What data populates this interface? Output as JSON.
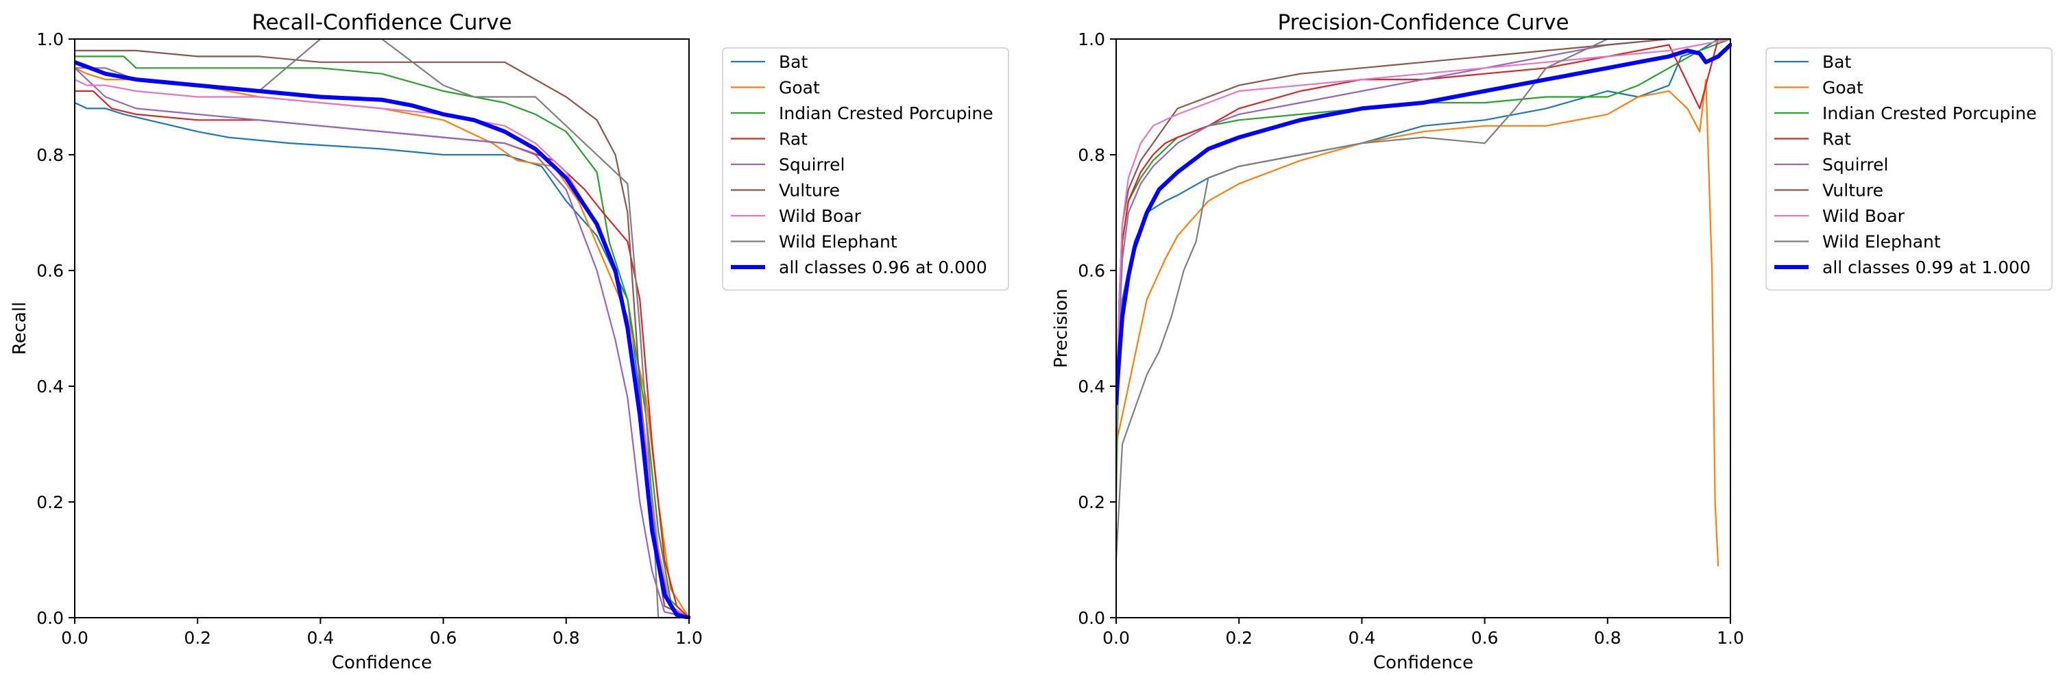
{
  "chart_data": [
    {
      "type": "line",
      "title": "Recall-Confidence Curve",
      "xlabel": "Confidence",
      "ylabel": "Recall",
      "xlim": [
        0,
        1
      ],
      "ylim": [
        0,
        1
      ],
      "xticks": [
        "0.0",
        "0.2",
        "0.4",
        "0.6",
        "0.8",
        "1.0"
      ],
      "yticks": [
        "0.0",
        "0.2",
        "0.4",
        "0.6",
        "0.8",
        "1.0"
      ],
      "legend_position": "outside-right",
      "series": [
        {
          "name": "Bat",
          "color": "#1f77b4",
          "x": [
            0,
            0.02,
            0.05,
            0.08,
            0.12,
            0.2,
            0.25,
            0.35,
            0.5,
            0.6,
            0.7,
            0.76,
            0.8,
            0.85,
            0.9,
            0.93,
            0.95,
            0.97,
            1.0
          ],
          "y": [
            0.89,
            0.88,
            0.88,
            0.87,
            0.86,
            0.84,
            0.83,
            0.82,
            0.81,
            0.8,
            0.8,
            0.78,
            0.72,
            0.66,
            0.55,
            0.3,
            0.1,
            0.02,
            0.0
          ]
        },
        {
          "name": "Goat",
          "color": "#ff7f0e",
          "x": [
            0,
            0.02,
            0.05,
            0.1,
            0.2,
            0.3,
            0.4,
            0.5,
            0.6,
            0.68,
            0.72,
            0.78,
            0.82,
            0.86,
            0.9,
            0.93,
            0.95,
            0.97,
            1.0
          ],
          "y": [
            0.95,
            0.94,
            0.93,
            0.93,
            0.92,
            0.9,
            0.89,
            0.88,
            0.86,
            0.82,
            0.79,
            0.78,
            0.72,
            0.62,
            0.52,
            0.38,
            0.2,
            0.05,
            0.0
          ]
        },
        {
          "name": "Indian Crested Porcupine",
          "color": "#2ca02c",
          "x": [
            0,
            0.03,
            0.08,
            0.1,
            0.2,
            0.3,
            0.4,
            0.5,
            0.6,
            0.7,
            0.75,
            0.8,
            0.85,
            0.87,
            0.9,
            0.93,
            0.95,
            0.97,
            1.0
          ],
          "y": [
            0.97,
            0.97,
            0.97,
            0.95,
            0.95,
            0.95,
            0.95,
            0.94,
            0.91,
            0.89,
            0.87,
            0.84,
            0.77,
            0.65,
            0.55,
            0.35,
            0.15,
            0.03,
            0.0
          ]
        },
        {
          "name": "Rat",
          "color": "#d62728",
          "x": [
            0,
            0.03,
            0.06,
            0.1,
            0.2,
            0.3,
            0.4,
            0.5,
            0.6,
            0.7,
            0.78,
            0.83,
            0.86,
            0.9,
            0.92,
            0.94,
            0.96,
            0.98,
            1.0
          ],
          "y": [
            0.91,
            0.91,
            0.88,
            0.87,
            0.86,
            0.86,
            0.85,
            0.84,
            0.83,
            0.82,
            0.79,
            0.74,
            0.7,
            0.65,
            0.55,
            0.3,
            0.1,
            0.02,
            0.0
          ]
        },
        {
          "name": "Squirrel",
          "color": "#9467bd",
          "x": [
            0,
            0.02,
            0.05,
            0.1,
            0.2,
            0.3,
            0.4,
            0.5,
            0.6,
            0.7,
            0.75,
            0.8,
            0.85,
            0.88,
            0.9,
            0.92,
            0.94,
            0.96,
            1.0
          ],
          "y": [
            0.95,
            0.93,
            0.9,
            0.88,
            0.87,
            0.86,
            0.85,
            0.84,
            0.83,
            0.82,
            0.8,
            0.74,
            0.6,
            0.48,
            0.38,
            0.2,
            0.08,
            0.01,
            0.0
          ]
        },
        {
          "name": "Vulture",
          "color": "#8c564b",
          "x": [
            0,
            0.02,
            0.05,
            0.1,
            0.2,
            0.3,
            0.4,
            0.5,
            0.6,
            0.7,
            0.75,
            0.8,
            0.85,
            0.88,
            0.9,
            0.92,
            0.94,
            0.96,
            1.0
          ],
          "y": [
            0.98,
            0.98,
            0.98,
            0.98,
            0.97,
            0.97,
            0.96,
            0.96,
            0.96,
            0.96,
            0.93,
            0.9,
            0.86,
            0.8,
            0.7,
            0.4,
            0.15,
            0.02,
            0.0
          ]
        },
        {
          "name": "Wild Boar",
          "color": "#e377c2",
          "x": [
            0,
            0.02,
            0.05,
            0.1,
            0.2,
            0.3,
            0.4,
            0.5,
            0.6,
            0.7,
            0.75,
            0.8,
            0.85,
            0.88,
            0.9,
            0.93,
            0.95,
            0.97,
            1.0
          ],
          "y": [
            0.93,
            0.92,
            0.92,
            0.91,
            0.9,
            0.9,
            0.89,
            0.88,
            0.87,
            0.85,
            0.82,
            0.77,
            0.68,
            0.6,
            0.5,
            0.3,
            0.12,
            0.02,
            0.0
          ]
        },
        {
          "name": "Wild Elephant",
          "color": "#7f7f7f",
          "x": [
            0,
            0.02,
            0.05,
            0.1,
            0.2,
            0.3,
            0.4,
            0.5,
            0.55,
            0.6,
            0.65,
            0.75,
            0.8,
            0.85,
            0.9,
            0.92,
            0.94,
            0.95,
            1.0
          ],
          "y": [
            0.95,
            0.95,
            0.95,
            0.93,
            0.92,
            0.91,
            1.0,
            1.0,
            0.96,
            0.92,
            0.9,
            0.9,
            0.85,
            0.8,
            0.75,
            0.5,
            0.2,
            0.0,
            0.0
          ]
        },
        {
          "name": "all classes 0.96 at 0.000",
          "color": "#0000ff",
          "bold": true,
          "x": [
            0,
            0.05,
            0.1,
            0.2,
            0.3,
            0.4,
            0.5,
            0.55,
            0.6,
            0.65,
            0.7,
            0.75,
            0.8,
            0.85,
            0.88,
            0.9,
            0.92,
            0.94,
            0.96,
            0.98,
            1.0
          ],
          "y": [
            0.96,
            0.94,
            0.93,
            0.92,
            0.91,
            0.9,
            0.895,
            0.885,
            0.87,
            0.86,
            0.84,
            0.81,
            0.76,
            0.68,
            0.6,
            0.5,
            0.35,
            0.15,
            0.04,
            0.005,
            0.0
          ]
        }
      ]
    },
    {
      "type": "line",
      "title": "Precision-Confidence Curve",
      "xlabel": "Confidence",
      "ylabel": "Precision",
      "xlim": [
        0,
        1
      ],
      "ylim": [
        0,
        1
      ],
      "xticks": [
        "0.0",
        "0.2",
        "0.4",
        "0.6",
        "0.8",
        "1.0"
      ],
      "yticks": [
        "0.0",
        "0.2",
        "0.4",
        "0.6",
        "0.8",
        "1.0"
      ],
      "legend_position": "outside-right",
      "series": [
        {
          "name": "Bat",
          "color": "#1f77b4",
          "x": [
            0,
            0.01,
            0.03,
            0.05,
            0.08,
            0.1,
            0.15,
            0.2,
            0.3,
            0.4,
            0.5,
            0.6,
            0.7,
            0.8,
            0.85,
            0.9,
            0.92,
            0.95,
            0.98,
            1.0
          ],
          "y": [
            0.4,
            0.55,
            0.65,
            0.7,
            0.72,
            0.73,
            0.76,
            0.78,
            0.8,
            0.82,
            0.85,
            0.86,
            0.88,
            0.91,
            0.9,
            0.92,
            0.97,
            0.98,
            1.0,
            1.0
          ]
        },
        {
          "name": "Goat",
          "color": "#ff7f0e",
          "x": [
            0,
            0.01,
            0.03,
            0.05,
            0.08,
            0.1,
            0.15,
            0.2,
            0.3,
            0.4,
            0.5,
            0.6,
            0.7,
            0.8,
            0.85,
            0.9,
            0.93,
            0.95,
            0.96,
            0.97,
            0.975,
            0.98
          ],
          "y": [
            0.3,
            0.35,
            0.45,
            0.55,
            0.62,
            0.66,
            0.72,
            0.75,
            0.79,
            0.82,
            0.84,
            0.85,
            0.85,
            0.87,
            0.9,
            0.91,
            0.88,
            0.84,
            0.93,
            0.6,
            0.2,
            0.09
          ]
        },
        {
          "name": "Indian Crested Porcupine",
          "color": "#2ca02c",
          "x": [
            0,
            0.005,
            0.01,
            0.02,
            0.04,
            0.06,
            0.08,
            0.1,
            0.15,
            0.2,
            0.3,
            0.4,
            0.5,
            0.6,
            0.7,
            0.8,
            0.85,
            0.9,
            0.95,
            1.0
          ],
          "y": [
            0.2,
            0.5,
            0.65,
            0.72,
            0.76,
            0.79,
            0.81,
            0.83,
            0.85,
            0.86,
            0.87,
            0.88,
            0.89,
            0.89,
            0.9,
            0.9,
            0.92,
            0.95,
            0.98,
            1.0
          ]
        },
        {
          "name": "Rat",
          "color": "#d62728",
          "x": [
            0,
            0.005,
            0.01,
            0.02,
            0.04,
            0.06,
            0.08,
            0.1,
            0.15,
            0.2,
            0.3,
            0.4,
            0.5,
            0.6,
            0.7,
            0.8,
            0.85,
            0.9,
            0.95,
            0.98,
            1.0
          ],
          "y": [
            0.3,
            0.55,
            0.65,
            0.72,
            0.77,
            0.8,
            0.82,
            0.83,
            0.85,
            0.88,
            0.91,
            0.93,
            0.93,
            0.94,
            0.95,
            0.97,
            0.98,
            0.99,
            0.88,
            1.0,
            1.0
          ]
        },
        {
          "name": "Squirrel",
          "color": "#9467bd",
          "x": [
            0,
            0.005,
            0.01,
            0.02,
            0.04,
            0.06,
            0.08,
            0.1,
            0.15,
            0.2,
            0.3,
            0.4,
            0.5,
            0.6,
            0.7,
            0.8,
            0.9,
            1.0
          ],
          "y": [
            0.3,
            0.5,
            0.62,
            0.7,
            0.75,
            0.78,
            0.8,
            0.82,
            0.85,
            0.87,
            0.89,
            0.91,
            0.93,
            0.95,
            0.97,
            0.99,
            1.0,
            1.0
          ]
        },
        {
          "name": "Vulture",
          "color": "#8c564b",
          "x": [
            0,
            0.005,
            0.01,
            0.02,
            0.04,
            0.06,
            0.08,
            0.1,
            0.15,
            0.2,
            0.3,
            0.4,
            0.5,
            0.6,
            0.7,
            0.8,
            0.9,
            1.0
          ],
          "y": [
            0.35,
            0.55,
            0.68,
            0.74,
            0.79,
            0.82,
            0.85,
            0.88,
            0.9,
            0.92,
            0.94,
            0.95,
            0.96,
            0.97,
            0.98,
            0.99,
            1.0,
            1.0
          ]
        },
        {
          "name": "Wild Boar",
          "color": "#e377c2",
          "x": [
            0,
            0.005,
            0.01,
            0.02,
            0.04,
            0.06,
            0.08,
            0.1,
            0.15,
            0.2,
            0.3,
            0.4,
            0.5,
            0.6,
            0.7,
            0.8,
            0.9,
            1.0
          ],
          "y": [
            0.3,
            0.55,
            0.68,
            0.76,
            0.82,
            0.85,
            0.86,
            0.87,
            0.89,
            0.91,
            0.92,
            0.93,
            0.94,
            0.95,
            0.96,
            0.97,
            0.98,
            1.0
          ]
        },
        {
          "name": "Wild Elephant",
          "color": "#7f7f7f",
          "x": [
            0,
            0.01,
            0.02,
            0.03,
            0.05,
            0.07,
            0.09,
            0.11,
            0.13,
            0.15,
            0.2,
            0.3,
            0.4,
            0.5,
            0.6,
            0.65,
            0.7,
            0.8,
            0.88,
            0.9,
            1.0
          ],
          "y": [
            0.1,
            0.3,
            0.33,
            0.36,
            0.42,
            0.46,
            0.52,
            0.6,
            0.65,
            0.76,
            0.78,
            0.8,
            0.82,
            0.83,
            0.82,
            0.88,
            0.95,
            1.0,
            1.0,
            1.0,
            1.0
          ]
        },
        {
          "name": "all classes 0.99 at 1.000",
          "color": "#0000ff",
          "bold": true,
          "x": [
            0,
            0.005,
            0.01,
            0.02,
            0.03,
            0.05,
            0.07,
            0.1,
            0.15,
            0.2,
            0.3,
            0.4,
            0.5,
            0.6,
            0.7,
            0.75,
            0.8,
            0.85,
            0.9,
            0.93,
            0.95,
            0.96,
            0.98,
            1.0
          ],
          "y": [
            0.37,
            0.45,
            0.52,
            0.59,
            0.64,
            0.7,
            0.74,
            0.77,
            0.81,
            0.83,
            0.86,
            0.88,
            0.89,
            0.91,
            0.93,
            0.94,
            0.95,
            0.96,
            0.97,
            0.98,
            0.975,
            0.96,
            0.97,
            0.99
          ]
        }
      ]
    }
  ]
}
